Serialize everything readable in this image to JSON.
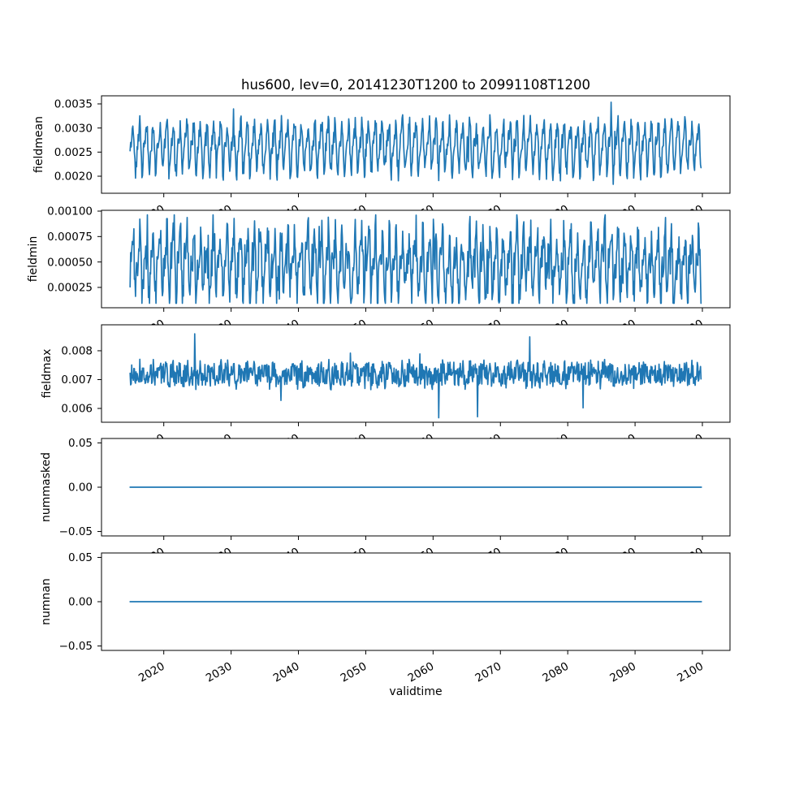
{
  "chart_data": {
    "type": "line",
    "title": "hus600, lev=0, 20141230T1200 to 20991108T1200",
    "xlabel": "validtime",
    "line_color": "#1f77b4",
    "x_range_years": [
      2015.0,
      2099.86
    ],
    "xlim": [
      2010.75,
      2104.1
    ],
    "xticks": [
      2020,
      2030,
      2040,
      2050,
      2060,
      2070,
      2080,
      2090,
      2100
    ],
    "xtick_labels": [
      "2020",
      "2030",
      "2040",
      "2050",
      "2060",
      "2070",
      "2080",
      "2090",
      "2100"
    ],
    "grid": false,
    "legend": "none",
    "subplots": [
      {
        "ylabel": "fieldmean",
        "yticks": [
          0.002,
          0.0025,
          0.003,
          0.0035
        ],
        "ytick_labels": [
          "0.0020",
          "0.0025",
          "0.0030",
          "0.0035"
        ],
        "ylim": [
          0.001646,
          0.003668
        ],
        "series": {
          "kind": "seasonal-noisy",
          "seed": 42,
          "baseline": 0.00262,
          "seasonal_amplitude": 0.00042,
          "harmonic_amplitude": 0.00016,
          "noise_amplitude": 0.0002,
          "spike_prob": 0.012,
          "spike_size": 0.00032,
          "dip_prob": 0.01,
          "dip_size": 0.0003,
          "observed_min": 0.00174,
          "observed_max": 0.00358,
          "period_years": 1
        }
      },
      {
        "ylabel": "fieldmin",
        "yticks": [
          0.00025,
          0.0005,
          0.00075,
          0.001
        ],
        "ytick_labels": [
          "0.00025",
          "0.00050",
          "0.00075",
          "0.00100"
        ],
        "ylim": [
          5e-05,
          0.001008
        ],
        "series": {
          "kind": "seasonal-noisy",
          "seed": 7,
          "baseline": 0.00048,
          "seasonal_amplitude": 0.00024,
          "harmonic_amplitude": 0.00013,
          "noise_amplitude": 0.00019,
          "spike_prob": 0.02,
          "spike_size": 0.00028,
          "dip_prob": 0.02,
          "dip_size": 0.00022,
          "observed_min": 9.4e-05,
          "observed_max": 0.000963,
          "period_years": 1
        }
      },
      {
        "ylabel": "fieldmax",
        "yticks": [
          0.006,
          0.007,
          0.008
        ],
        "ytick_labels": [
          "0.006",
          "0.007",
          "0.008"
        ],
        "ylim": [
          0.005521,
          0.0089
        ],
        "series": {
          "kind": "seasonal-noisy",
          "seed": 13,
          "baseline": 0.00718,
          "seasonal_amplitude": 9e-05,
          "harmonic_amplitude": 5e-05,
          "noise_amplitude": 0.00042,
          "spike_prob": 0.005,
          "spike_size": 0.0011,
          "dip_prob": 0.005,
          "dip_size": 0.0012,
          "observed_min": 0.005675,
          "observed_max": 0.008747,
          "period_years": 1
        }
      },
      {
        "ylabel": "nummasked",
        "yticks": [
          -0.05,
          0.0,
          0.05
        ],
        "ytick_labels": [
          "−0.05",
          "0.00",
          "0.05"
        ],
        "ylim": [
          -0.055,
          0.055
        ],
        "series": {
          "kind": "constant",
          "value": 0
        }
      },
      {
        "ylabel": "numnan",
        "yticks": [
          -0.05,
          0.0,
          0.05
        ],
        "ytick_labels": [
          "−0.05",
          "0.00",
          "0.05"
        ],
        "ylim": [
          -0.055,
          0.055
        ],
        "series": {
          "kind": "constant",
          "value": 0
        }
      }
    ]
  }
}
